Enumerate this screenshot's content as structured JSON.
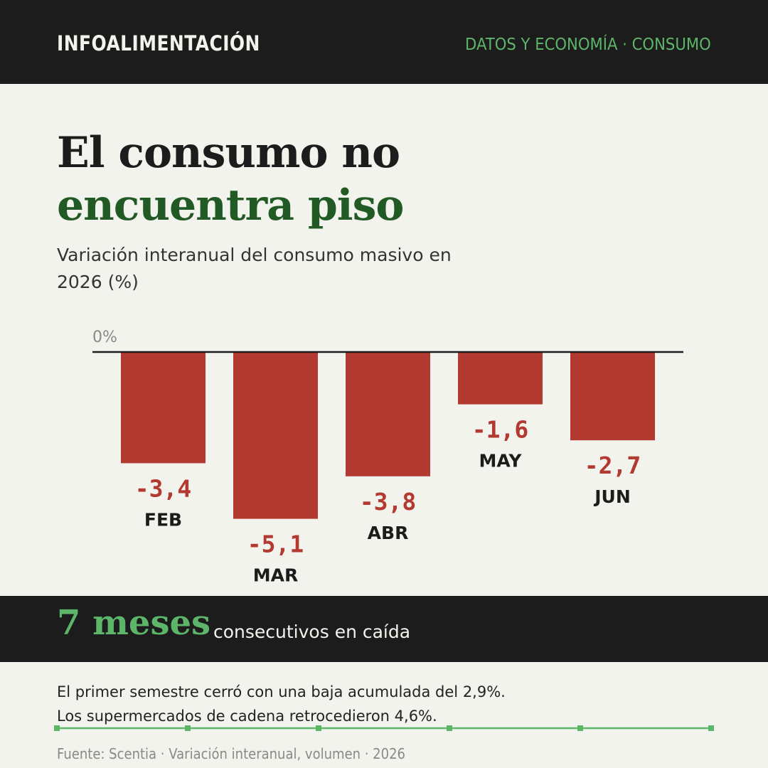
{
  "header": {
    "brand": "INFOALIMENTACIÓN",
    "section": "DATOS Y ECONOMÍA · CONSUMO"
  },
  "headline": {
    "line1": "El consumo no",
    "line2": "encuentra piso"
  },
  "subtitle": "Variación interanual del consumo masivo en 2026 (%)",
  "chart_data": {
    "type": "bar",
    "title": "Variación interanual del consumo masivo en 2026 (%)",
    "categories": [
      "FEB",
      "MAR",
      "ABR",
      "MAY",
      "JUN"
    ],
    "values": [
      -3.4,
      -5.1,
      -3.8,
      -1.6,
      -2.7
    ],
    "value_labels": [
      "-3,4",
      "-5,1",
      "-3,8",
      "-1,6",
      "-2,7"
    ],
    "zero_label": "0%",
    "ylim": [
      -5.1,
      0
    ],
    "grid": false,
    "legend": "none",
    "bar_color": "#b23a30",
    "label_color": "#b23a30"
  },
  "highlight": {
    "big": "7 meses",
    "rest": "consecutivos en caída"
  },
  "notes": [
    "El primer semestre cerró con una baja acumulada del 2,9%.",
    "Los supermercados de cadena retrocedieron 4,6%."
  ],
  "source": "Fuente: Scentia · Variación interanual, volumen · 2026",
  "colors": {
    "dark": "#1c1c1c",
    "background": "#f3f3ee",
    "accent_green": "#5db56a",
    "headline_green": "#215a25",
    "bar_red": "#b23a30"
  }
}
